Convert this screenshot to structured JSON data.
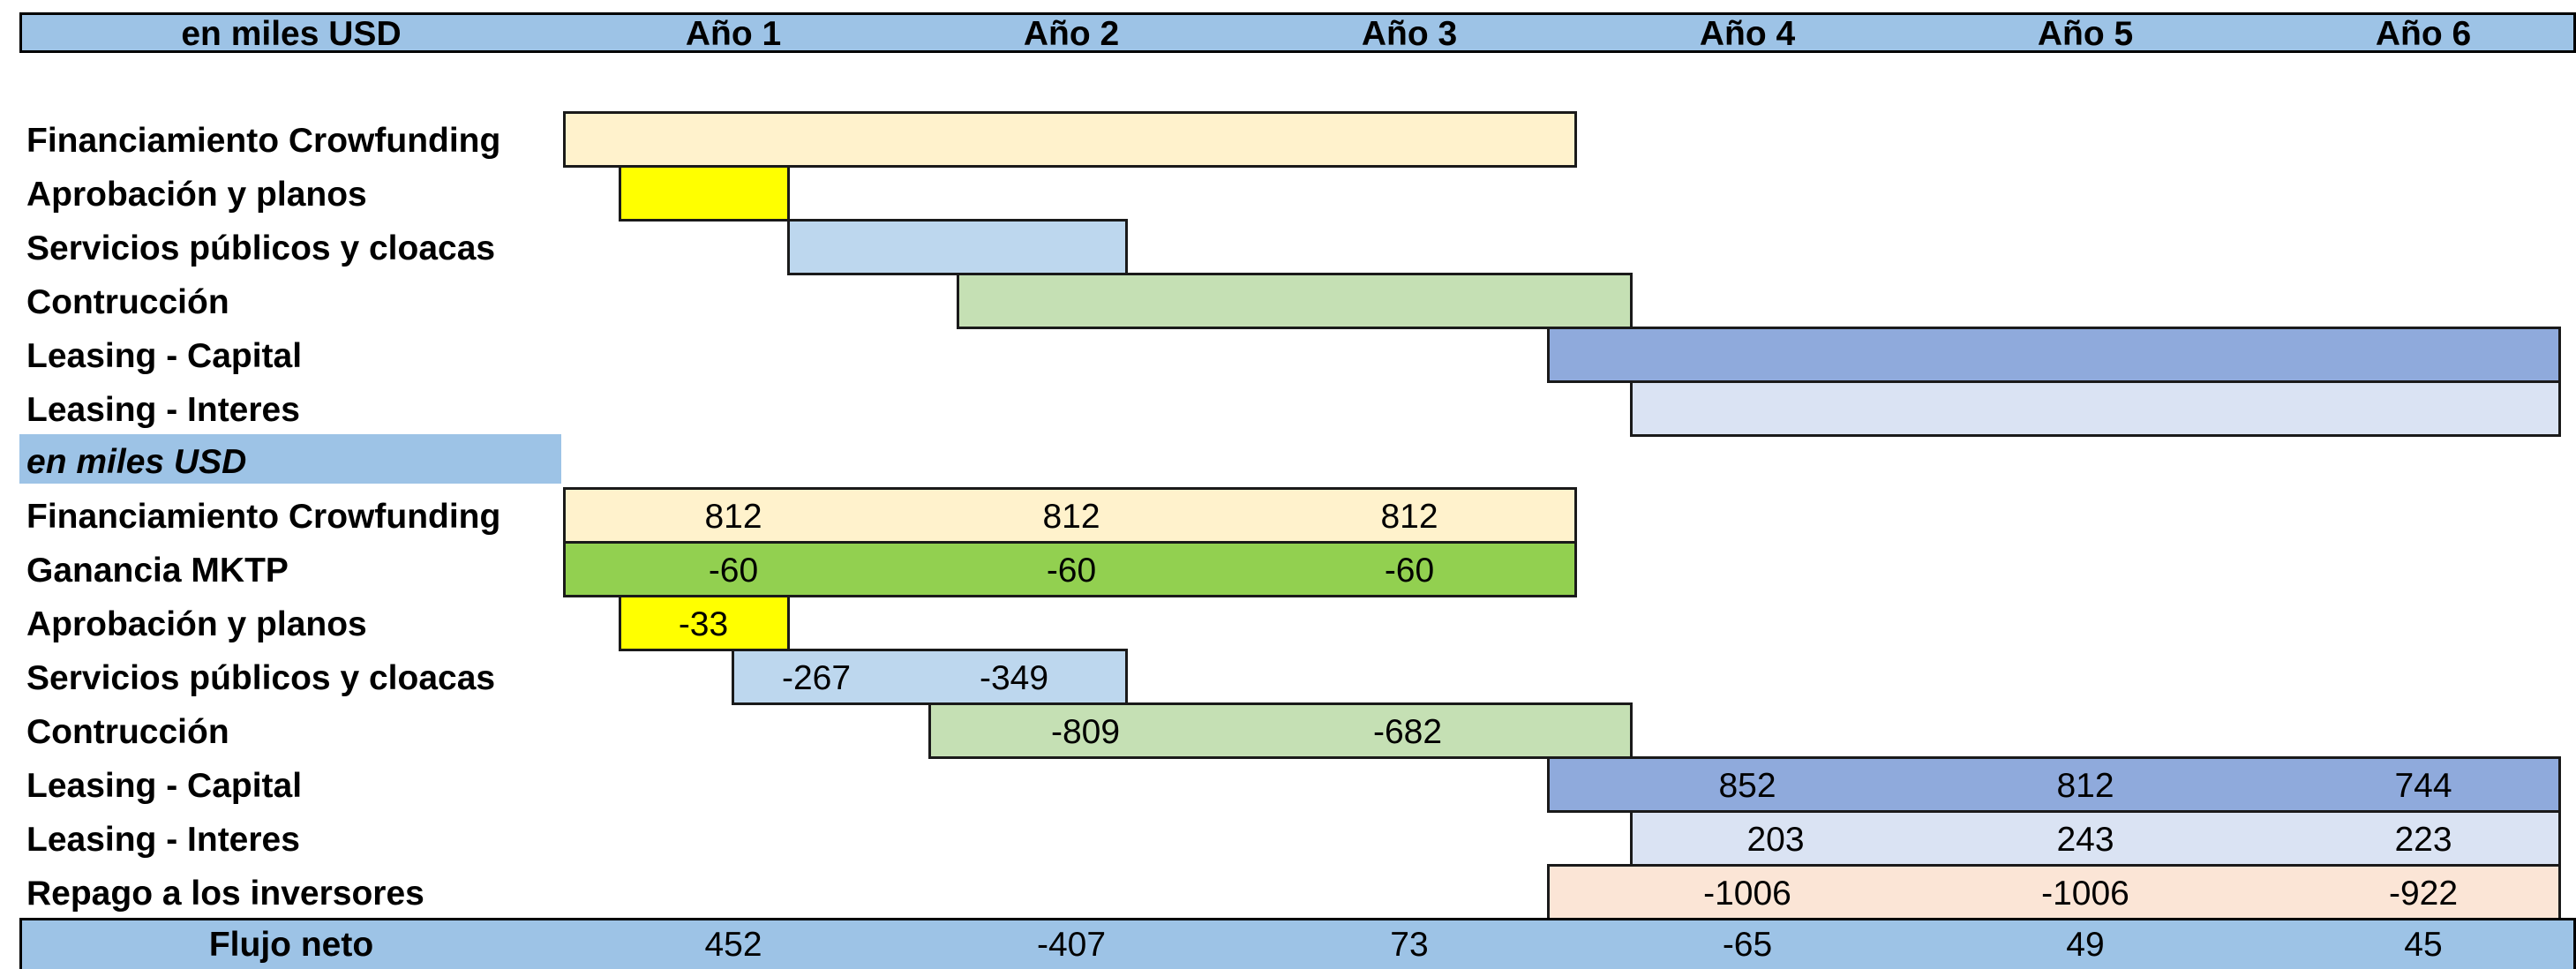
{
  "header": {
    "units_label": "en miles USD",
    "years": [
      "Año 1",
      "Año 2",
      "Año 3",
      "Año 4",
      "Año 5",
      "Año 6"
    ]
  },
  "gantt": {
    "rows": [
      {
        "label": "Financiamiento Crowfunding",
        "color": "#fff2cc"
      },
      {
        "label": "Aprobación y planos",
        "color": "#ffff00"
      },
      {
        "label": "Servicios públicos y cloacas",
        "color": "#bdd7ee"
      },
      {
        "label": "Contrucción",
        "color": "#c5e0b4"
      },
      {
        "label": "Leasing - Capital",
        "color": "#8faadc"
      },
      {
        "label": "Leasing - Interes",
        "color": "#dae3f3"
      }
    ]
  },
  "cashflow": {
    "units_label": "en miles USD",
    "rows": [
      {
        "label": "Financiamiento Crowfunding",
        "color": "#fff2cc",
        "values": [
          "812",
          "812",
          "812"
        ]
      },
      {
        "label": "Ganancia MKTP",
        "color": "#92d050",
        "values": [
          "-60",
          "-60",
          "-60"
        ]
      },
      {
        "label": "Aprobación y planos",
        "color": "#ffff00",
        "values": [
          "-33"
        ]
      },
      {
        "label": "Servicios públicos y cloacas",
        "color": "#bdd7ee",
        "values": [
          "-267",
          "-349"
        ]
      },
      {
        "label": "Contrucción",
        "color": "#c5e0b4",
        "values": [
          "-809",
          "-682"
        ]
      },
      {
        "label": "Leasing - Capital",
        "color": "#8faadc",
        "values": [
          "852",
          "812",
          "744"
        ]
      },
      {
        "label": "Leasing - Interes",
        "color": "#dae3f3",
        "values": [
          "203",
          "243",
          "223"
        ]
      },
      {
        "label": "Repago a los inversores",
        "color": "#fbe5d6",
        "values": [
          "-1006",
          "-1006",
          "-922"
        ]
      }
    ]
  },
  "net_flow": {
    "label": "Flujo neto",
    "values": [
      "452",
      "-407",
      "73",
      "-65",
      "49",
      "45"
    ]
  }
}
